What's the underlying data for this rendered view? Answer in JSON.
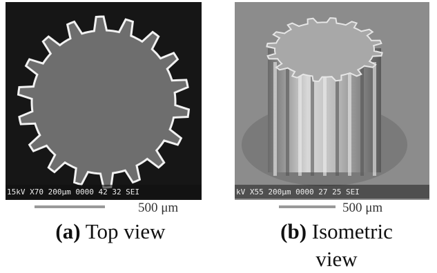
{
  "panels": [
    {
      "sem_info": "15kV X70 200μm 0000 42 32 SEI",
      "scale_label": "500 μm",
      "caption_label": "(a)",
      "caption_text": "Top view"
    },
    {
      "sem_info": "kV X55 200μm 0000 27 25 SEI",
      "scale_label": "500 μm",
      "caption_label": "(b)",
      "caption_text": "Isometric view"
    }
  ]
}
